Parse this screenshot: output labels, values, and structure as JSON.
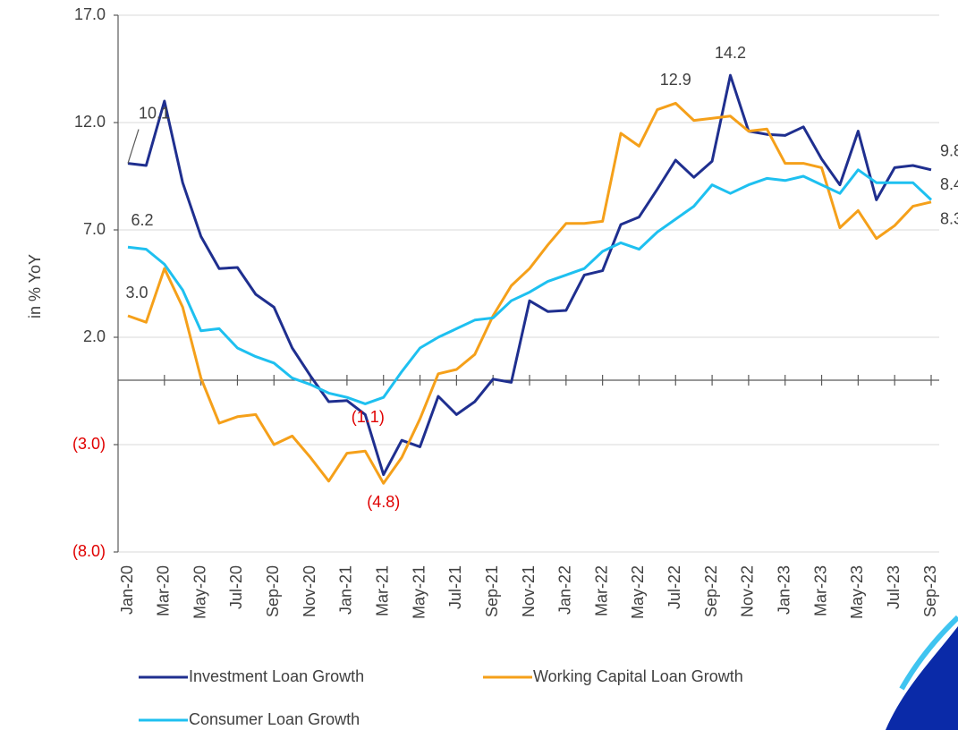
{
  "chart_data": {
    "type": "line",
    "y_label": "in % YoY",
    "categories": [
      "Jan-20",
      null,
      "Mar-20",
      null,
      "May-20",
      null,
      "Jul-20",
      null,
      "Sep-20",
      null,
      "Nov-20",
      null,
      "Jan-21",
      null,
      "Mar-21",
      null,
      "May-21",
      null,
      "Jul-21",
      null,
      "Sep-21",
      null,
      "Nov-21",
      null,
      "Jan-22",
      null,
      "Mar-22",
      null,
      "May-22",
      null,
      "Jul-22",
      null,
      "Sep-22",
      null,
      "Nov-22",
      null,
      "Jan-23",
      null,
      "Mar-23",
      null,
      "May-23",
      null,
      "Jul-23",
      null,
      "Sep-23"
    ],
    "ylim": [
      -8,
      17
    ],
    "yticks": [
      {
        "value": -8,
        "label": "(8.0)"
      },
      {
        "value": -3,
        "label": "(3.0)"
      },
      {
        "value": 2,
        "label": "2.0"
      },
      {
        "value": 7,
        "label": "7.0"
      },
      {
        "value": 12,
        "label": "12.0"
      },
      {
        "value": 17,
        "label": "17.0"
      }
    ],
    "grid": true,
    "legend": "bottom",
    "series": [
      {
        "name": "Investment Loan Growth",
        "color": "#1f2f8f",
        "values": [
          10.1,
          10.0,
          13.0,
          9.2,
          6.7,
          5.2,
          5.25,
          4.0,
          3.4,
          1.5,
          0.2,
          -1.0,
          -0.95,
          -1.6,
          -4.4,
          -2.8,
          -3.1,
          -0.75,
          -1.6,
          -1.0,
          0.05,
          -0.1,
          3.7,
          3.2,
          3.25,
          4.9,
          5.1,
          7.25,
          7.6,
          8.9,
          10.25,
          9.45,
          10.2,
          14.2,
          11.6,
          11.45,
          11.4,
          11.8,
          10.3,
          9.1,
          11.6,
          8.4,
          9.9,
          10.0,
          9.8
        ],
        "value_labels": [
          "10.1",
          null,
          null,
          null,
          null,
          null,
          null,
          null,
          null,
          null,
          null,
          null,
          null,
          null,
          null,
          null,
          null,
          null,
          null,
          null,
          null,
          null,
          null,
          null,
          null,
          null,
          null,
          null,
          null,
          null,
          null,
          null,
          null,
          "14.2",
          null,
          null,
          null,
          null,
          null,
          null,
          null,
          null,
          null,
          null,
          "9.8"
        ]
      },
      {
        "name": "Working Capital Loan Growth",
        "color": "#f5a01a",
        "values": [
          3.0,
          2.7,
          5.2,
          3.4,
          0.1,
          -2.0,
          -1.7,
          -1.6,
          -3.0,
          -2.6,
          -3.6,
          -4.7,
          -3.4,
          -3.3,
          -4.8,
          -3.6,
          -1.8,
          0.3,
          0.5,
          1.2,
          3.0,
          4.4,
          5.2,
          6.3,
          7.3,
          7.3,
          7.4,
          11.5,
          10.9,
          12.6,
          12.9,
          12.1,
          12.2,
          12.3,
          11.6,
          11.7,
          10.1,
          10.1,
          9.9,
          7.1,
          7.9,
          6.6,
          7.2,
          8.1,
          8.3
        ],
        "value_labels": [
          "3.0",
          null,
          null,
          null,
          null,
          null,
          null,
          null,
          null,
          null,
          null,
          null,
          null,
          null,
          "(4.8)",
          null,
          null,
          null,
          null,
          null,
          null,
          null,
          null,
          null,
          null,
          null,
          null,
          null,
          null,
          null,
          "12.9",
          null,
          null,
          null,
          null,
          null,
          null,
          null,
          null,
          null,
          null,
          null,
          null,
          null,
          "8.3"
        ]
      },
      {
        "name": "Consumer Loan Growth",
        "color": "#1ec0f0",
        "values": [
          6.2,
          6.1,
          5.4,
          4.2,
          2.3,
          2.4,
          1.5,
          1.1,
          0.8,
          0.1,
          -0.2,
          -0.6,
          -0.8,
          -1.1,
          -0.8,
          0.4,
          1.5,
          2.0,
          2.4,
          2.8,
          2.9,
          3.7,
          4.1,
          4.6,
          4.9,
          5.2,
          6.0,
          6.4,
          6.1,
          6.9,
          7.5,
          8.1,
          9.1,
          8.7,
          9.1,
          9.4,
          9.3,
          9.5,
          9.1,
          8.7,
          9.8,
          9.2,
          9.2,
          9.2,
          8.4
        ],
        "value_labels": [
          "6.2",
          null,
          null,
          null,
          null,
          null,
          null,
          null,
          null,
          null,
          null,
          null,
          null,
          "(1.1)",
          null,
          null,
          null,
          null,
          null,
          null,
          null,
          null,
          null,
          null,
          null,
          null,
          null,
          null,
          null,
          null,
          null,
          null,
          null,
          null,
          null,
          null,
          null,
          null,
          null,
          null,
          null,
          null,
          null,
          null,
          "8.4"
        ]
      }
    ]
  }
}
